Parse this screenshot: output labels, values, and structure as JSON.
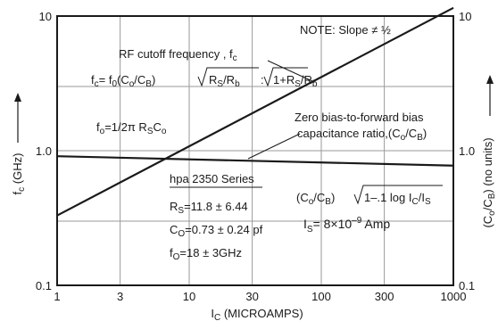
{
  "chart_data": {
    "type": "line",
    "xscale": "log",
    "yscale": "log",
    "xlim": [
      1,
      1000
    ],
    "ylim_left": [
      0.1,
      10
    ],
    "ylim_right": [
      0.1,
      10
    ],
    "grid": true,
    "xlabel": "I",
    "xlabel_sub": "C",
    "xlabel_rest": " (MICROAMPS)",
    "ylabel_left": "f",
    "ylabel_left_sub": "c",
    "ylabel_left_rest": " (GHz)",
    "ylabel_right": "(C",
    "ylabel_right_sub": "o",
    "ylabel_right_rest": "/C",
    "ylabel_right_sub2": "B",
    "ylabel_right_tail": ") (no units)",
    "x_ticks": [
      1,
      3,
      10,
      30,
      100,
      300,
      1000
    ],
    "x_tick_labels": [
      "1",
      "3",
      "10",
      "30",
      "100",
      "300",
      "1000"
    ],
    "y_ticks_left": [
      0.1,
      1.0,
      10
    ],
    "y_tick_labels_left": [
      "0.1",
      "1.0",
      "10"
    ],
    "y_ticks_right": [
      0.1,
      1.0,
      10
    ],
    "y_tick_labels_right": [
      "0.1",
      "1.0",
      "10"
    ],
    "series": [
      {
        "x": [
          1,
          1000
        ],
        "y": [
          0.33,
          11.5
        ]
      },
      {
        "x": [
          1,
          1000
        ],
        "y": [
          0.91,
          0.775
        ]
      }
    ],
    "annotations": {
      "note": "NOTE: Slope ≠ ½",
      "rf_label": "RF cutoff frequency , f",
      "rf_label_sub": "c",
      "fc_formula": "f",
      "fc_formula_sub": "c",
      "fc_formula_mid": "= f",
      "fc_formula_sub2": "0",
      "fc_formula_rest": "(C",
      "fc_formula_sub3": "o",
      "fc_formula_rest2": "/C",
      "fc_formula_sub4": "B",
      "fc_formula_rest3": ")",
      "sqrt1": "R",
      "sqrt1_sub": "S",
      "sqrt1_mid": "/R",
      "sqrt1_sub2": "b",
      "sqrt_sep": ":",
      "sqrt2": "1+R",
      "sqrt2_sub": "S",
      "sqrt2_mid": "/R",
      "sqrt2_sub2": "b",
      "f0_formula": "f",
      "f0_formula_sub": "o",
      "f0_formula_rest": "=1/2π R",
      "f0_formula_sub2": "S",
      "f0_formula_rest2": "C",
      "f0_formula_sub3": "o",
      "zero_bias_line1": "Zero bias-to-forward bias",
      "zero_bias_line2": "capacitance ratio,(C",
      "zero_bias_sub": "o",
      "zero_bias_rest": "/C",
      "zero_bias_sub2": "B",
      "zero_bias_tail": ")",
      "series_title": "hpa 2350 Series",
      "rs": "R",
      "rs_sub": "S",
      "rs_rest": "=11.8 ± 6.44",
      "co": "C",
      "co_sub": "O",
      "co_rest": "=0.73 ± 0.24 pf",
      "fo": "f",
      "fo_sub": "O",
      "fo_rest": "=18 ± 3GHz",
      "ratio": "(C",
      "ratio_sub": "o",
      "ratio_mid": "/C",
      "ratio_sub2": "B",
      "ratio_mid2": ")",
      "ratio_root": "1–.1 log I",
      "ratio_root_sub": "C",
      "ratio_root_mid": "/I",
      "ratio_root_sub2": "S",
      "is_label": "I",
      "is_sub": "S",
      "is_rest": "= 8×10",
      "is_exp": "–9",
      "is_unit": " Amp"
    }
  }
}
